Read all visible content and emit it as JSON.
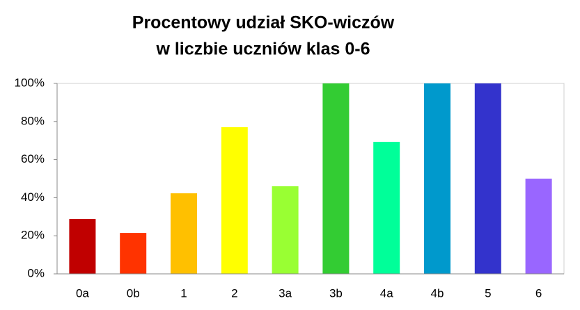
{
  "chart_data": {
    "type": "bar",
    "title": [
      "Procentowy udział SKO-wiczów",
      "w liczbie uczniów klas 0-6"
    ],
    "categories": [
      "0a",
      "0b",
      "1",
      "2",
      "3a",
      "3b",
      "4a",
      "4b",
      "5",
      "6"
    ],
    "values": [
      28.8,
      21.5,
      42.3,
      77,
      46,
      100,
      69.3,
      100,
      100,
      50
    ],
    "colors": [
      "#c00000",
      "#ff3300",
      "#ffc000",
      "#ffff00",
      "#99ff33",
      "#33cc33",
      "#00ff99",
      "#0099cc",
      "#3333cc",
      "#9966ff"
    ],
    "ylim": [
      0,
      100
    ],
    "yticks": [
      {
        "value": 0,
        "label": "0%"
      },
      {
        "value": 20,
        "label": "20%"
      },
      {
        "value": 40,
        "label": "40%"
      },
      {
        "value": 60,
        "label": "60%"
      },
      {
        "value": 80,
        "label": "80%"
      },
      {
        "value": 100,
        "label": "100%"
      }
    ],
    "grid": false
  }
}
